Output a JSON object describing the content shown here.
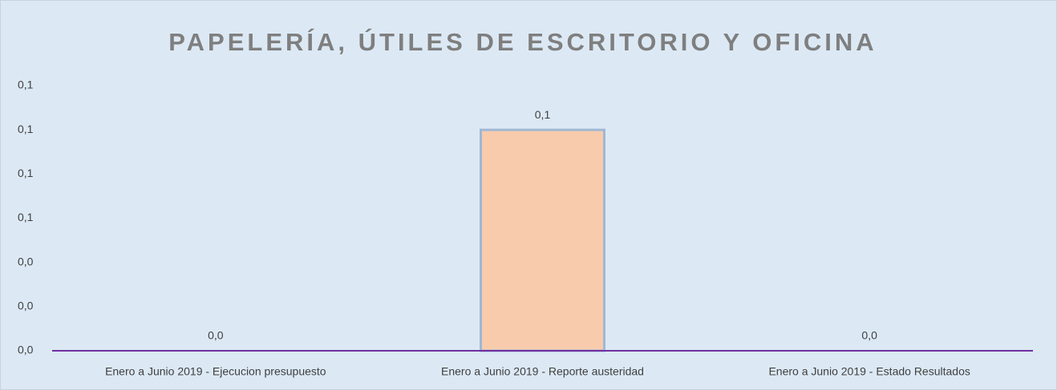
{
  "chart_data": {
    "type": "bar",
    "title": "PAPELERÍA, ÚTILES DE ESCRITORIO Y OFICINA",
    "categories": [
      "Enero a Junio 2019 - Ejecucion presupuesto",
      "Enero a Junio 2019 - Reporte austeridad",
      "Enero a Junio 2019 - Estado Resultados"
    ],
    "values": [
      0,
      0.1,
      0
    ],
    "value_labels": [
      "0,0",
      "0,1",
      "0,0"
    ],
    "color": "#f8cbad",
    "ylim": [
      0,
      0.12
    ],
    "yticks": [
      {
        "value": 0,
        "label": "0,0"
      },
      {
        "value": 0.02,
        "label": "0,0"
      },
      {
        "value": 0.04,
        "label": "0,0"
      },
      {
        "value": 0.06,
        "label": "0,1"
      },
      {
        "value": 0.08,
        "label": "0,1"
      },
      {
        "value": 0.1,
        "label": "0,1"
      },
      {
        "value": 0.12,
        "label": "0,1"
      }
    ],
    "grid": false
  }
}
